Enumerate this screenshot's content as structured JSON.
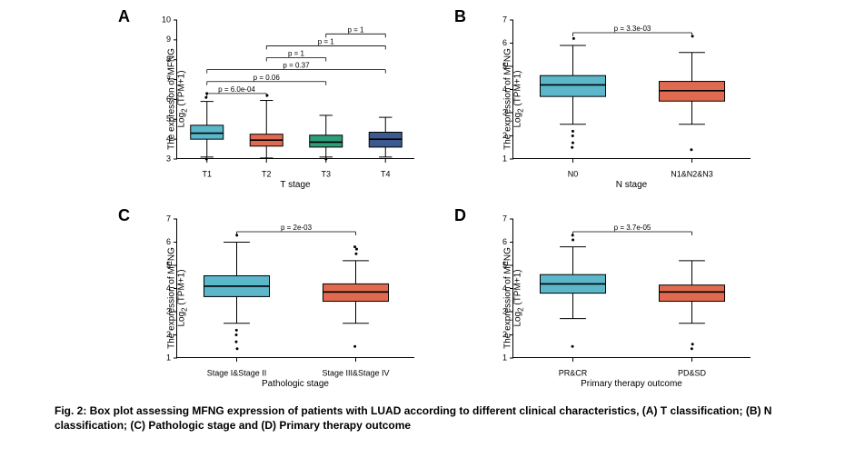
{
  "global": {
    "background_color": "#ffffff",
    "axis_color": "#000000",
    "text_color": "#000000",
    "whisker_color": "#000000",
    "median_color": "#000000",
    "panel_letter_fontsize": 18,
    "axis_label_fontsize": 10,
    "tick_fontsize": 9,
    "pvalue_fontsize": 8,
    "ylabel_line1": "The expression of MFNG",
    "ylabel_line2": "Log",
    "ylabel_sub": "2",
    "ylabel_line2_tail": " (TPM+1)"
  },
  "panels": {
    "A": {
      "letter": "A",
      "xlabel": "T stage",
      "ylim": [
        3,
        10
      ],
      "ytick_step": 1,
      "categories": [
        "T1",
        "T2",
        "T3",
        "T4"
      ],
      "boxes": [
        {
          "q1": 4.0,
          "median": 4.3,
          "q3": 4.7,
          "wlo": 3.1,
          "whi": 5.9,
          "outliers": [
            3.0,
            6.1,
            6.3
          ],
          "fill": "#5bb7c9"
        },
        {
          "q1": 3.65,
          "median": 3.95,
          "q3": 4.25,
          "wlo": 3.05,
          "whi": 5.95,
          "outliers": [
            6.2
          ],
          "fill": "#e06a4f"
        },
        {
          "q1": 3.6,
          "median": 3.85,
          "q3": 4.2,
          "wlo": 3.1,
          "whi": 5.2,
          "outliers": [
            3.0
          ],
          "fill": "#2d9d7a"
        },
        {
          "q1": 3.6,
          "median": 4.0,
          "q3": 4.35,
          "wlo": 3.1,
          "whi": 5.1,
          "outliers": [],
          "fill": "#3c5a8f"
        }
      ],
      "pvalues": [
        {
          "i": 0,
          "j": 1,
          "label": "p = 6.0e-04",
          "y": 6.3
        },
        {
          "i": 0,
          "j": 2,
          "label": "p = 0.06",
          "y": 6.9
        },
        {
          "i": 0,
          "j": 3,
          "label": "p = 0.37",
          "y": 7.5
        },
        {
          "i": 1,
          "j": 2,
          "label": "p = 1",
          "y": 8.1
        },
        {
          "i": 1,
          "j": 3,
          "label": "p = 1",
          "y": 8.7
        },
        {
          "i": 2,
          "j": 3,
          "label": "p = 1",
          "y": 9.3
        }
      ]
    },
    "B": {
      "letter": "B",
      "xlabel": "N stage",
      "ylim": [
        1,
        7
      ],
      "ytick_step": 1,
      "categories": [
        "N0",
        "N1&N2&N3"
      ],
      "boxes": [
        {
          "q1": 3.7,
          "median": 4.2,
          "q3": 4.6,
          "wlo": 2.5,
          "whi": 5.9,
          "outliers": [
            1.5,
            1.7,
            2.0,
            2.2,
            6.2
          ],
          "fill": "#5bb7c9"
        },
        {
          "q1": 3.5,
          "median": 3.95,
          "q3": 4.35,
          "wlo": 2.5,
          "whi": 5.6,
          "outliers": [
            1.4,
            6.3
          ],
          "fill": "#e06a4f"
        }
      ],
      "pvalues": [
        {
          "i": 0,
          "j": 1,
          "label": "p = 3.3e-03",
          "y": 6.45
        }
      ]
    },
    "C": {
      "letter": "C",
      "xlabel": "Pathologic stage",
      "ylim": [
        1,
        7
      ],
      "ytick_step": 1,
      "categories": [
        "Stage I&Stage II",
        "Stage III&Stage IV"
      ],
      "boxes": [
        {
          "q1": 3.65,
          "median": 4.1,
          "q3": 4.55,
          "wlo": 2.5,
          "whi": 6.0,
          "outliers": [
            1.4,
            1.7,
            2.0,
            2.2,
            6.3
          ],
          "fill": "#5bb7c9"
        },
        {
          "q1": 3.45,
          "median": 3.85,
          "q3": 4.2,
          "wlo": 2.5,
          "whi": 5.2,
          "outliers": [
            1.5,
            5.5,
            5.7,
            5.8
          ],
          "fill": "#e06a4f"
        }
      ],
      "pvalues": [
        {
          "i": 0,
          "j": 1,
          "label": "p = 2e-03",
          "y": 6.45
        }
      ]
    },
    "D": {
      "letter": "D",
      "xlabel": "Primary therapy outcome",
      "ylim": [
        1,
        7
      ],
      "ytick_step": 1,
      "categories": [
        "PR&CR",
        "PD&SD"
      ],
      "boxes": [
        {
          "q1": 3.8,
          "median": 4.2,
          "q3": 4.6,
          "wlo": 2.7,
          "whi": 5.8,
          "outliers": [
            1.5,
            6.1,
            6.3
          ],
          "fill": "#5bb7c9"
        },
        {
          "q1": 3.45,
          "median": 3.85,
          "q3": 4.15,
          "wlo": 2.5,
          "whi": 5.2,
          "outliers": [
            1.4,
            1.6
          ],
          "fill": "#e06a4f"
        }
      ],
      "pvalues": [
        {
          "i": 0,
          "j": 1,
          "label": "p = 3.7e-05",
          "y": 6.45
        }
      ]
    }
  },
  "caption": {
    "bold": "Fig. 2: Box plot assessing MFNG expression of patients with LUAD according to different clinical characteristics, (A) T classification; (B) N classification; (C) Pathologic stage and (D) Primary therapy outcome",
    "plain": ""
  },
  "styling": {
    "box_rel_width": 0.55,
    "box_border_color": "#000000",
    "box_border_width": 1,
    "median_width": 1.6,
    "whisker_width": 1,
    "cap_rel_width": 0.22,
    "outlier_radius": 1.5,
    "outlier_color": "#000000",
    "bracket_color": "#000000",
    "bracket_width": 0.8,
    "bracket_tick": 4
  }
}
